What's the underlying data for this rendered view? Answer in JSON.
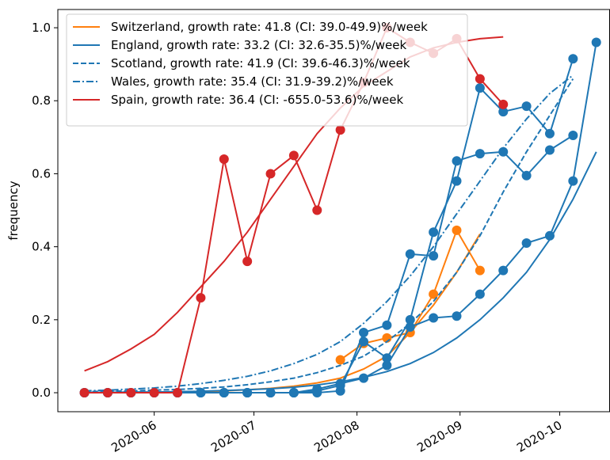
{
  "chart_data": {
    "type": "line",
    "y_label": "frequency",
    "xlim": [
      124,
      290
    ],
    "ylim": [
      -0.052,
      1.05
    ],
    "xticks": [
      {
        "value": 153,
        "label": "2020-06"
      },
      {
        "value": 183,
        "label": "2020-07"
      },
      {
        "value": 214,
        "label": "2020-08"
      },
      {
        "value": 245,
        "label": "2020-09"
      },
      {
        "value": 275,
        "label": "2020-10"
      }
    ],
    "yticks": [
      {
        "value": 0,
        "label": "0.0"
      },
      0.2,
      0.4,
      0.6,
      0.8,
      {
        "value": 1,
        "label": "1.0"
      }
    ],
    "legend": "upper left",
    "series": [
      {
        "name": "Switzerland, growth rate: 41.8 (CI: 39.0-49.9)%/week",
        "color": "#ff7f0e",
        "dash": "solid",
        "markers": false,
        "x": [
          132,
          139,
          146,
          153,
          160,
          167,
          174,
          181,
          188,
          195,
          202,
          209,
          216,
          223,
          230,
          237,
          244,
          251
        ],
        "values": [
          0,
          0,
          0.001,
          0.001,
          0.002,
          0.003,
          0.005,
          0.008,
          0.012,
          0.018,
          0.027,
          0.04,
          0.065,
          0.1,
          0.165,
          0.24,
          0.33,
          0.435
        ]
      },
      {
        "color": "#ff7f0e",
        "dash": "solid",
        "markers": true,
        "x": [
          209,
          216,
          223,
          230,
          237,
          244,
          251
        ],
        "values": [
          0.09,
          0.135,
          0.15,
          0.165,
          0.27,
          0.445,
          0.335
        ]
      },
      {
        "name": "England, growth rate: 33.2 (CI: 32.6-35.5)%/week",
        "color": "#1f77b4",
        "dash": "solid",
        "markers": false,
        "x": [
          132,
          139,
          146,
          153,
          160,
          167,
          174,
          181,
          188,
          195,
          202,
          209,
          216,
          223,
          230,
          237,
          244,
          251,
          258,
          265,
          272,
          279,
          286
        ],
        "values": [
          0.001,
          0.001,
          0.002,
          0.002,
          0.003,
          0.004,
          0.006,
          0.008,
          0.011,
          0.015,
          0.021,
          0.03,
          0.042,
          0.058,
          0.08,
          0.11,
          0.15,
          0.2,
          0.26,
          0.33,
          0.42,
          0.53,
          0.66
        ]
      },
      {
        "color": "#1f77b4",
        "dash": "solid",
        "markers": true,
        "x": [
          132,
          139,
          146,
          153,
          160,
          167,
          174,
          181,
          188,
          195,
          202,
          209,
          216,
          223,
          230,
          237,
          244,
          251,
          258,
          265,
          272,
          279,
          286
        ],
        "values": [
          0,
          0,
          0,
          0,
          0,
          0,
          0,
          0,
          0,
          0,
          0.01,
          0.025,
          0.04,
          0.075,
          0.18,
          0.205,
          0.21,
          0.27,
          0.335,
          0.41,
          0.43,
          0.58,
          0.96
        ]
      },
      {
        "name": "Scotland, growth rate: 41.9 (CI: 39.6-46.3)%/week",
        "color": "#1f77b4",
        "dash": "dashed",
        "markers": false,
        "x": [
          132,
          139,
          146,
          153,
          160,
          167,
          174,
          181,
          188,
          195,
          202,
          209,
          216,
          223,
          230,
          237,
          244,
          251,
          258,
          265,
          272,
          279
        ],
        "values": [
          0.003,
          0.004,
          0.005,
          0.007,
          0.009,
          0.012,
          0.016,
          0.022,
          0.03,
          0.04,
          0.055,
          0.075,
          0.1,
          0.14,
          0.19,
          0.25,
          0.33,
          0.43,
          0.55,
          0.66,
          0.76,
          0.86
        ]
      },
      {
        "color": "#1f77b4",
        "dash": "solid",
        "markers": true,
        "x": [
          132,
          139,
          146,
          153,
          160,
          167,
          174,
          181,
          188,
          195,
          202,
          209,
          216,
          223,
          230,
          237,
          244,
          251,
          258,
          265,
          272,
          279
        ],
        "values": [
          0,
          0,
          0,
          0,
          0,
          0,
          0,
          0,
          0,
          0,
          0,
          0.005,
          0.165,
          0.185,
          0.38,
          0.375,
          0.635,
          0.655,
          0.66,
          0.595,
          0.665,
          0.705
        ]
      },
      {
        "name": "Wales, growth rate: 35.4 (CI: 31.9-39.2)%/week",
        "color": "#1f77b4",
        "dash": "dashdot",
        "markers": false,
        "x": [
          132,
          139,
          146,
          153,
          160,
          167,
          174,
          181,
          188,
          195,
          202,
          209,
          216,
          223,
          230,
          237,
          244,
          251,
          258,
          265,
          272,
          279
        ],
        "values": [
          0.005,
          0.007,
          0.01,
          0.013,
          0.018,
          0.025,
          0.034,
          0.045,
          0.06,
          0.08,
          0.105,
          0.14,
          0.19,
          0.25,
          0.32,
          0.4,
          0.49,
          0.58,
          0.67,
          0.75,
          0.82,
          0.87
        ]
      },
      {
        "color": "#1f77b4",
        "dash": "solid",
        "markers": true,
        "x": [
          132,
          139,
          146,
          153,
          160,
          167,
          174,
          181,
          188,
          195,
          202,
          209,
          216,
          223,
          230,
          237,
          244,
          251,
          258,
          265,
          272,
          279
        ],
        "values": [
          0,
          0,
          0,
          0,
          0,
          0,
          0,
          0,
          0,
          0,
          0.005,
          0.02,
          0.14,
          0.095,
          0.2,
          0.44,
          0.58,
          0.835,
          0.77,
          0.785,
          0.71,
          0.915
        ]
      },
      {
        "name": "Spain, growth rate: 36.4 (CI: -655.0-53.6)%/week",
        "color": "#d62728",
        "dash": "solid",
        "markers": false,
        "x": [
          132,
          139,
          146,
          153,
          160,
          167,
          174,
          181,
          188,
          195,
          202,
          209,
          216,
          223,
          230,
          237,
          244,
          251,
          258
        ],
        "values": [
          0.06,
          0.085,
          0.12,
          0.16,
          0.22,
          0.29,
          0.36,
          0.44,
          0.53,
          0.62,
          0.71,
          0.78,
          0.84,
          0.88,
          0.92,
          0.945,
          0.96,
          0.97,
          0.975
        ]
      },
      {
        "color": "#d62728",
        "dash": "solid",
        "markers": true,
        "x": [
          132,
          139,
          146,
          153,
          160,
          167,
          174,
          181,
          188,
          195,
          202,
          209,
          216,
          223,
          230,
          237,
          244,
          251,
          258
        ],
        "values": [
          0,
          0,
          0,
          0,
          0,
          0.26,
          0.64,
          0.36,
          0.6,
          0.65,
          0.5,
          0.72,
          0.85,
          1.0,
          0.96,
          0.93,
          0.97,
          0.86,
          0.79
        ]
      }
    ]
  }
}
